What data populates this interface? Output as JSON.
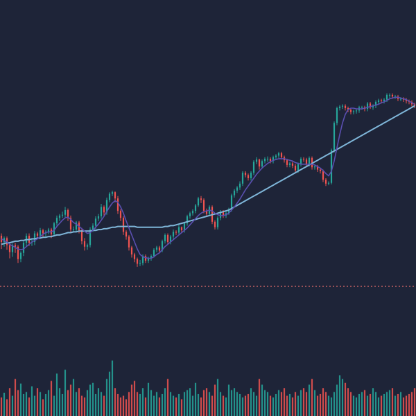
{
  "chart_data": {
    "type": "candlestick",
    "x": [
      1,
      2,
      3,
      4,
      5,
      6,
      7,
      8,
      9,
      10,
      11,
      12,
      13,
      14,
      15,
      16,
      17,
      18,
      19,
      20,
      21,
      22,
      23,
      24,
      25,
      26,
      27,
      28,
      29,
      30,
      31,
      32,
      33,
      34,
      35,
      36,
      37,
      38,
      39,
      40,
      41,
      42,
      43,
      44,
      45,
      46,
      47,
      48,
      49,
      50,
      51,
      52,
      53,
      54,
      55,
      56,
      57,
      58,
      59,
      60,
      61,
      62,
      63,
      64,
      65,
      66,
      67,
      68,
      69,
      70,
      71,
      72,
      73,
      74,
      75,
      76,
      77,
      78,
      79,
      80,
      81,
      82,
      83,
      84,
      85,
      86,
      87,
      88,
      89,
      90,
      91,
      92,
      93,
      94,
      95,
      96,
      97,
      98,
      99,
      100,
      101,
      102,
      103,
      104,
      105,
      106,
      107,
      108,
      109,
      110,
      111,
      112,
      113,
      114,
      115,
      116,
      117,
      118,
      119,
      120,
      121,
      122,
      123,
      124,
      125,
      126,
      127,
      128,
      129,
      130,
      131,
      132,
      133,
      134,
      135,
      136,
      137,
      138,
      139,
      140,
      141,
      142,
      143,
      144,
      145,
      146,
      147,
      148,
      149,
      150
    ],
    "open": [
      52.7,
      51.9,
      52.4,
      51.5,
      50.6,
      51.5,
      51.3,
      49.7,
      50.5,
      51.8,
      52.7,
      51.8,
      51.9,
      53.0,
      52.7,
      53.4,
      53.0,
      53.2,
      53.5,
      52.9,
      54.3,
      55.0,
      55.3,
      55.4,
      56.0,
      55.0,
      53.5,
      53.5,
      54.4,
      53.4,
      52.0,
      51.3,
      51.5,
      53.5,
      54.0,
      54.9,
      55.2,
      56.4,
      55.7,
      57.3,
      58.1,
      58.3,
      57.5,
      55.9,
      55.0,
      53.2,
      52.6,
      51.2,
      50.3,
      49.7,
      49.1,
      49.2,
      50.1,
      49.5,
      49.8,
      50.1,
      50.9,
      51.2,
      50.8,
      52.0,
      52.8,
      51.9,
      52.6,
      53.2,
      53.1,
      53.8,
      53.4,
      54.3,
      55.2,
      55.6,
      55.9,
      56.6,
      57.5,
      57.3,
      55.9,
      55.5,
      56.4,
      54.5,
      53.8,
      55.0,
      55.8,
      55.3,
      55.6,
      56.1,
      57.9,
      58.5,
      58.9,
      59.4,
      60.8,
      60.5,
      60.1,
      60.8,
      62.2,
      62.5,
      61.6,
      62.3,
      62.6,
      62.6,
      62.3,
      62.8,
      63.0,
      63.3,
      62.8,
      62.4,
      61.8,
      62.0,
      61.7,
      61.1,
      61.9,
      62.6,
      62.5,
      61.9,
      62.7,
      61.5,
      61.6,
      61.2,
      61.0,
      59.9,
      59.4,
      59.5,
      63.7,
      67.2,
      69.1,
      69.3,
      69.4,
      69.1,
      68.9,
      68.6,
      68.7,
      68.8,
      69.2,
      69.2,
      69.0,
      69.7,
      69.2,
      69.4,
      69.9,
      70.1,
      70.0,
      70.2,
      70.8,
      70.8,
      70.6,
      70.6,
      70.3,
      70.3,
      70.2,
      70.0,
      69.9,
      69.6
    ],
    "close": [
      51.9,
      52.4,
      51.5,
      50.6,
      51.5,
      51.3,
      49.7,
      50.5,
      51.8,
      52.7,
      51.8,
      51.9,
      53.0,
      52.7,
      53.4,
      53.0,
      53.2,
      53.5,
      52.9,
      54.3,
      55.0,
      55.3,
      55.4,
      56.0,
      55.0,
      53.5,
      53.5,
      54.4,
      53.4,
      52.0,
      51.3,
      51.5,
      53.5,
      54.0,
      54.9,
      55.2,
      56.4,
      55.7,
      57.3,
      58.1,
      58.3,
      57.5,
      55.9,
      55.0,
      53.2,
      52.6,
      51.2,
      50.3,
      49.7,
      49.1,
      49.2,
      50.1,
      49.5,
      49.8,
      50.1,
      50.9,
      51.2,
      50.8,
      52.0,
      52.8,
      51.9,
      52.6,
      53.2,
      53.1,
      53.8,
      53.4,
      54.3,
      55.2,
      55.6,
      55.9,
      56.6,
      57.5,
      57.3,
      55.9,
      55.5,
      56.4,
      54.5,
      53.8,
      55.0,
      55.8,
      55.3,
      55.6,
      56.1,
      57.9,
      58.5,
      58.9,
      59.4,
      60.8,
      60.5,
      60.1,
      60.8,
      62.2,
      62.5,
      61.6,
      62.3,
      62.6,
      62.6,
      62.3,
      62.8,
      63.0,
      63.3,
      62.8,
      62.4,
      61.8,
      62.0,
      61.7,
      61.1,
      61.9,
      62.6,
      62.5,
      61.9,
      62.7,
      61.5,
      61.6,
      61.2,
      61.0,
      59.9,
      59.4,
      59.5,
      63.7,
      67.2,
      69.1,
      69.3,
      69.4,
      69.1,
      68.9,
      68.6,
      68.7,
      68.8,
      69.2,
      69.2,
      69.0,
      69.7,
      69.2,
      69.4,
      69.9,
      70.1,
      70.0,
      70.2,
      70.8,
      70.8,
      70.6,
      70.6,
      70.3,
      70.3,
      70.2,
      70.0,
      69.9,
      69.6,
      69.4
    ],
    "high": [
      53.0,
      52.6,
      52.6,
      51.7,
      51.7,
      51.8,
      51.5,
      50.7,
      52.0,
      53.0,
      53.0,
      52.2,
      53.3,
      53.2,
      53.7,
      53.6,
      53.4,
      53.7,
      53.7,
      54.5,
      55.3,
      55.5,
      55.8,
      56.4,
      56.2,
      55.3,
      53.9,
      54.6,
      54.6,
      53.7,
      52.4,
      51.7,
      53.8,
      54.3,
      55.2,
      55.5,
      56.8,
      56.6,
      57.6,
      58.3,
      58.5,
      58.4,
      57.8,
      56.1,
      55.2,
      53.4,
      52.8,
      51.4,
      50.5,
      49.9,
      49.6,
      50.3,
      50.3,
      50.0,
      50.3,
      51.1,
      51.4,
      51.4,
      52.2,
      53.0,
      53.0,
      52.8,
      53.5,
      53.4,
      54.1,
      53.9,
      54.5,
      55.4,
      55.8,
      56.1,
      56.8,
      57.7,
      57.8,
      57.5,
      56.2,
      56.6,
      56.6,
      54.7,
      55.2,
      56.0,
      56.0,
      55.8,
      56.3,
      58.1,
      58.7,
      59.1,
      59.7,
      61.0,
      61.0,
      60.7,
      61.0,
      62.4,
      62.8,
      62.6,
      62.5,
      62.8,
      62.9,
      62.8,
      63.0,
      63.2,
      63.5,
      63.5,
      63.0,
      62.6,
      62.2,
      62.2,
      61.9,
      62.1,
      62.8,
      62.8,
      62.7,
      62.9,
      62.9,
      61.8,
      61.8,
      61.4,
      61.2,
      60.1,
      59.7,
      63.9,
      67.4,
      69.3,
      69.5,
      69.6,
      69.6,
      69.3,
      69.0,
      68.9,
      69.0,
      69.4,
      69.4,
      69.4,
      69.9,
      69.9,
      69.6,
      70.1,
      70.3,
      70.3,
      70.4,
      71.0,
      71.0,
      71.0,
      70.8,
      70.8,
      70.5,
      70.5,
      70.4,
      70.2,
      70.1,
      69.8
    ],
    "low": [
      51.0,
      51.3,
      50.9,
      49.8,
      50.0,
      50.5,
      49.2,
      49.3,
      50.1,
      51.4,
      51.4,
      51.4,
      51.5,
      52.3,
      52.4,
      52.6,
      52.6,
      52.9,
      52.4,
      52.6,
      54.0,
      54.6,
      55.0,
      55.0,
      54.6,
      53.1,
      53.1,
      53.2,
      53.0,
      51.6,
      50.8,
      50.9,
      51.2,
      53.2,
      53.6,
      54.6,
      54.9,
      55.3,
      55.4,
      57.0,
      57.8,
      57.0,
      55.5,
      54.6,
      52.8,
      52.2,
      50.8,
      49.9,
      49.3,
      48.7,
      48.8,
      48.9,
      49.2,
      49.2,
      49.5,
      49.9,
      50.6,
      50.5,
      50.6,
      51.7,
      51.6,
      51.6,
      52.3,
      52.8,
      52.8,
      53.1,
      53.1,
      54.0,
      54.9,
      55.3,
      55.6,
      56.4,
      56.9,
      55.6,
      55.2,
      55.2,
      54.2,
      53.5,
      53.5,
      54.7,
      55.0,
      55.0,
      55.4,
      55.8,
      57.6,
      58.2,
      58.6,
      59.1,
      60.2,
      59.8,
      59.8,
      60.5,
      61.9,
      61.2,
      61.3,
      62.0,
      62.2,
      62.0,
      62.0,
      62.5,
      62.7,
      62.5,
      62.1,
      61.5,
      61.5,
      61.4,
      60.8,
      60.8,
      61.6,
      62.2,
      61.6,
      61.6,
      61.2,
      61.2,
      60.9,
      60.7,
      59.6,
      59.1,
      59.2,
      59.3,
      63.4,
      66.9,
      68.8,
      69.0,
      68.8,
      68.6,
      68.3,
      68.3,
      68.4,
      68.5,
      68.9,
      68.7,
      68.7,
      69.0,
      68.9,
      69.1,
      69.6,
      69.7,
      69.7,
      69.9,
      70.4,
      70.3,
      70.3,
      70.0,
      70.0,
      69.9,
      69.7,
      69.6,
      69.3,
      69.1
    ],
    "volume": [
      20,
      25,
      18,
      30,
      22,
      40,
      28,
      35,
      24,
      26,
      20,
      32,
      22,
      30,
      26,
      18,
      24,
      28,
      38,
      22,
      46,
      30,
      24,
      50,
      28,
      34,
      40,
      26,
      30,
      22,
      20,
      28,
      34,
      36,
      24,
      30,
      26,
      22,
      40,
      48,
      60,
      30,
      24,
      20,
      22,
      18,
      26,
      34,
      38,
      26,
      24,
      30,
      20,
      36,
      28,
      22,
      26,
      20,
      24,
      30,
      40,
      26,
      22,
      20,
      24,
      18,
      26,
      28,
      30,
      22,
      36,
      24,
      20,
      28,
      30,
      26,
      22,
      34,
      40,
      26,
      22,
      20,
      34,
      28,
      30,
      26,
      24,
      20,
      22,
      24,
      30,
      26,
      22,
      40,
      34,
      28,
      26,
      22,
      20,
      24,
      28,
      26,
      30,
      22,
      24,
      20,
      26,
      22,
      28,
      30,
      26,
      34,
      40,
      28,
      22,
      24,
      30,
      26,
      22,
      20,
      26,
      34,
      44,
      40,
      36,
      30,
      26,
      22,
      20,
      24,
      26,
      28,
      22,
      24,
      30,
      26,
      20,
      22,
      24,
      26,
      28,
      30,
      22,
      24,
      26,
      20,
      22,
      24,
      26,
      30
    ],
    "moving_averages": [
      {
        "values": [
          51.6,
          51.7,
          51.8,
          51.8,
          51.9,
          52.0,
          52.0,
          52.1,
          52.1,
          52.2,
          52.2,
          52.3,
          52.3,
          52.4,
          52.4,
          52.5,
          52.5,
          52.6,
          52.6,
          52.7,
          52.8,
          52.8,
          52.9,
          53.0,
          53.1,
          53.1,
          53.2,
          53.2,
          53.3,
          53.3,
          53.3,
          53.3,
          53.3,
          53.4,
          53.4,
          53.5,
          53.5,
          53.6,
          53.6,
          53.7,
          53.8,
          53.8,
          53.9,
          53.9,
          53.9,
          53.9,
          53.9,
          53.9,
          53.9,
          53.8,
          53.8,
          53.8,
          53.8,
          53.8,
          53.8,
          53.8,
          53.8,
          53.8,
          53.8,
          53.9,
          53.9,
          54.0,
          54.0,
          54.1,
          54.2,
          54.3,
          54.4,
          54.5,
          54.6,
          54.7,
          54.8,
          54.9,
          55.0,
          55.1,
          55.2,
          55.3,
          55.4,
          55.5,
          55.6,
          55.7,
          55.8,
          55.9,
          56.0,
          56.2,
          56.4,
          56.6,
          56.8,
          57.0,
          57.2,
          57.4,
          57.6,
          57.8,
          58.0,
          58.2,
          58.4,
          58.6,
          58.8,
          59.0,
          59.2,
          59.4,
          59.6,
          59.8,
          60.0,
          60.2,
          60.4,
          60.6,
          60.8,
          61.0,
          61.2,
          61.4,
          61.6,
          61.8,
          62.0,
          62.2,
          62.4,
          62.6,
          62.8,
          63.0,
          63.2,
          63.4,
          63.6,
          63.8,
          64.0,
          64.2,
          64.4,
          64.6,
          64.8,
          65.0,
          65.2,
          65.4,
          65.6,
          65.8,
          66.0,
          66.2,
          66.4,
          66.6,
          66.8,
          67.0,
          67.2,
          67.4,
          67.6,
          67.8,
          68.0,
          68.2,
          68.4,
          68.6,
          68.8,
          69.0,
          69.2,
          69.4
        ]
      },
      {
        "values": [
          52.3,
          52.1,
          51.9,
          51.6,
          51.4,
          51.2,
          51.0,
          50.9,
          51.0,
          51.3,
          51.6,
          51.9,
          52.1,
          52.3,
          52.6,
          52.9,
          53.1,
          53.2,
          53.2,
          53.4,
          53.9,
          54.3,
          54.7,
          55.0,
          55.1,
          54.8,
          54.4,
          54.2,
          53.9,
          53.6,
          53.3,
          53.0,
          53.1,
          53.4,
          53.8,
          54.2,
          54.7,
          55.2,
          55.8,
          56.4,
          56.9,
          57.2,
          57.0,
          56.4,
          55.6,
          54.6,
          53.7,
          52.8,
          51.9,
          51.0,
          50.3,
          50.0,
          49.9,
          49.8,
          49.8,
          50.0,
          50.3,
          50.5,
          50.9,
          51.3,
          51.6,
          51.9,
          52.2,
          52.5,
          52.8,
          53.1,
          53.4,
          53.7,
          54.1,
          54.5,
          54.9,
          55.3,
          55.6,
          55.8,
          55.9,
          56.0,
          55.9,
          55.6,
          55.4,
          55.3,
          55.3,
          55.4,
          55.6,
          56.0,
          56.4,
          56.9,
          57.4,
          58.0,
          58.6,
          59.1,
          59.6,
          60.1,
          60.6,
          61.0,
          61.4,
          61.7,
          62.0,
          62.2,
          62.4,
          62.5,
          62.6,
          62.6,
          62.6,
          62.5,
          62.4,
          62.3,
          62.1,
          62.0,
          61.9,
          61.9,
          61.9,
          61.9,
          61.9,
          61.8,
          61.6,
          61.4,
          61.1,
          60.7,
          60.4,
          61.0,
          62.3,
          64.0,
          65.7,
          67.2,
          68.3,
          68.9,
          69.1,
          69.1,
          69.0,
          69.0,
          69.0,
          69.1,
          69.2,
          69.3,
          69.4,
          69.5,
          69.6,
          69.8,
          69.9,
          70.1,
          70.3,
          70.4,
          70.5,
          70.5,
          70.4,
          70.3,
          70.2,
          70.0,
          69.8,
          69.6
        ]
      }
    ],
    "horizontal_line": {
      "value": 46.2,
      "style": "dotted",
      "color": "#e06a6a"
    },
    "ylim": [
      38,
      83
    ],
    "colors": {
      "up": "#26a69a",
      "down": "#ef5350",
      "ma1": "#7fb6d9",
      "ma2": "#5a4fb0",
      "background": "#1e2438"
    },
    "grid": false,
    "title": "",
    "xlabel": "",
    "ylabel": ""
  }
}
